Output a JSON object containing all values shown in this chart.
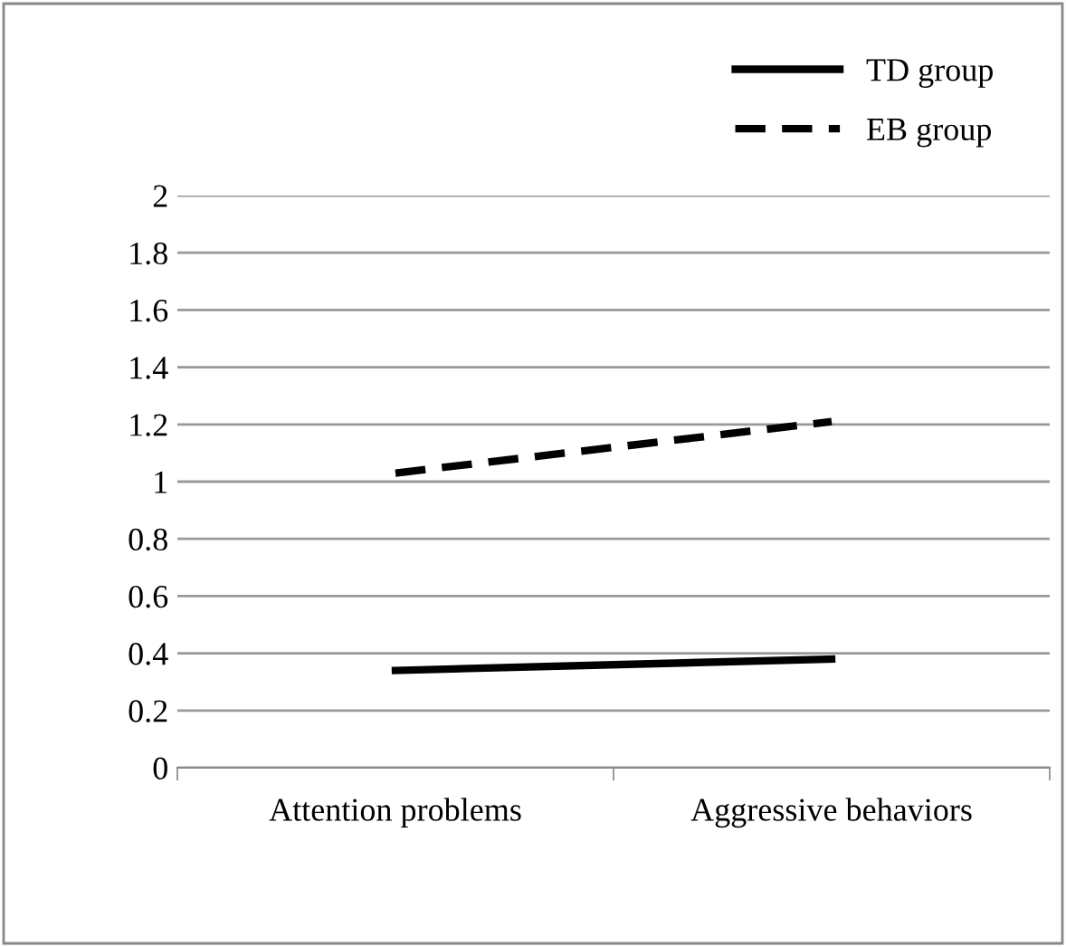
{
  "chart_data": {
    "type": "line",
    "categories": [
      "Attention problems",
      "Aggressive behaviors"
    ],
    "series": [
      {
        "name": "TD group",
        "color": "#000000",
        "values": [
          0.34,
          0.38
        ],
        "line_style": "solid"
      },
      {
        "name": "EB group",
        "color": "#000000",
        "values": [
          1.03,
          1.21
        ],
        "line_style": "dashed"
      }
    ],
    "ylim": [
      0,
      2
    ],
    "yticks": [
      0,
      0.2,
      0.4,
      0.6,
      0.8,
      1,
      1.2,
      1.4,
      1.6,
      1.8,
      2
    ],
    "grid": "y",
    "legend": "top right",
    "marker": "none"
  }
}
